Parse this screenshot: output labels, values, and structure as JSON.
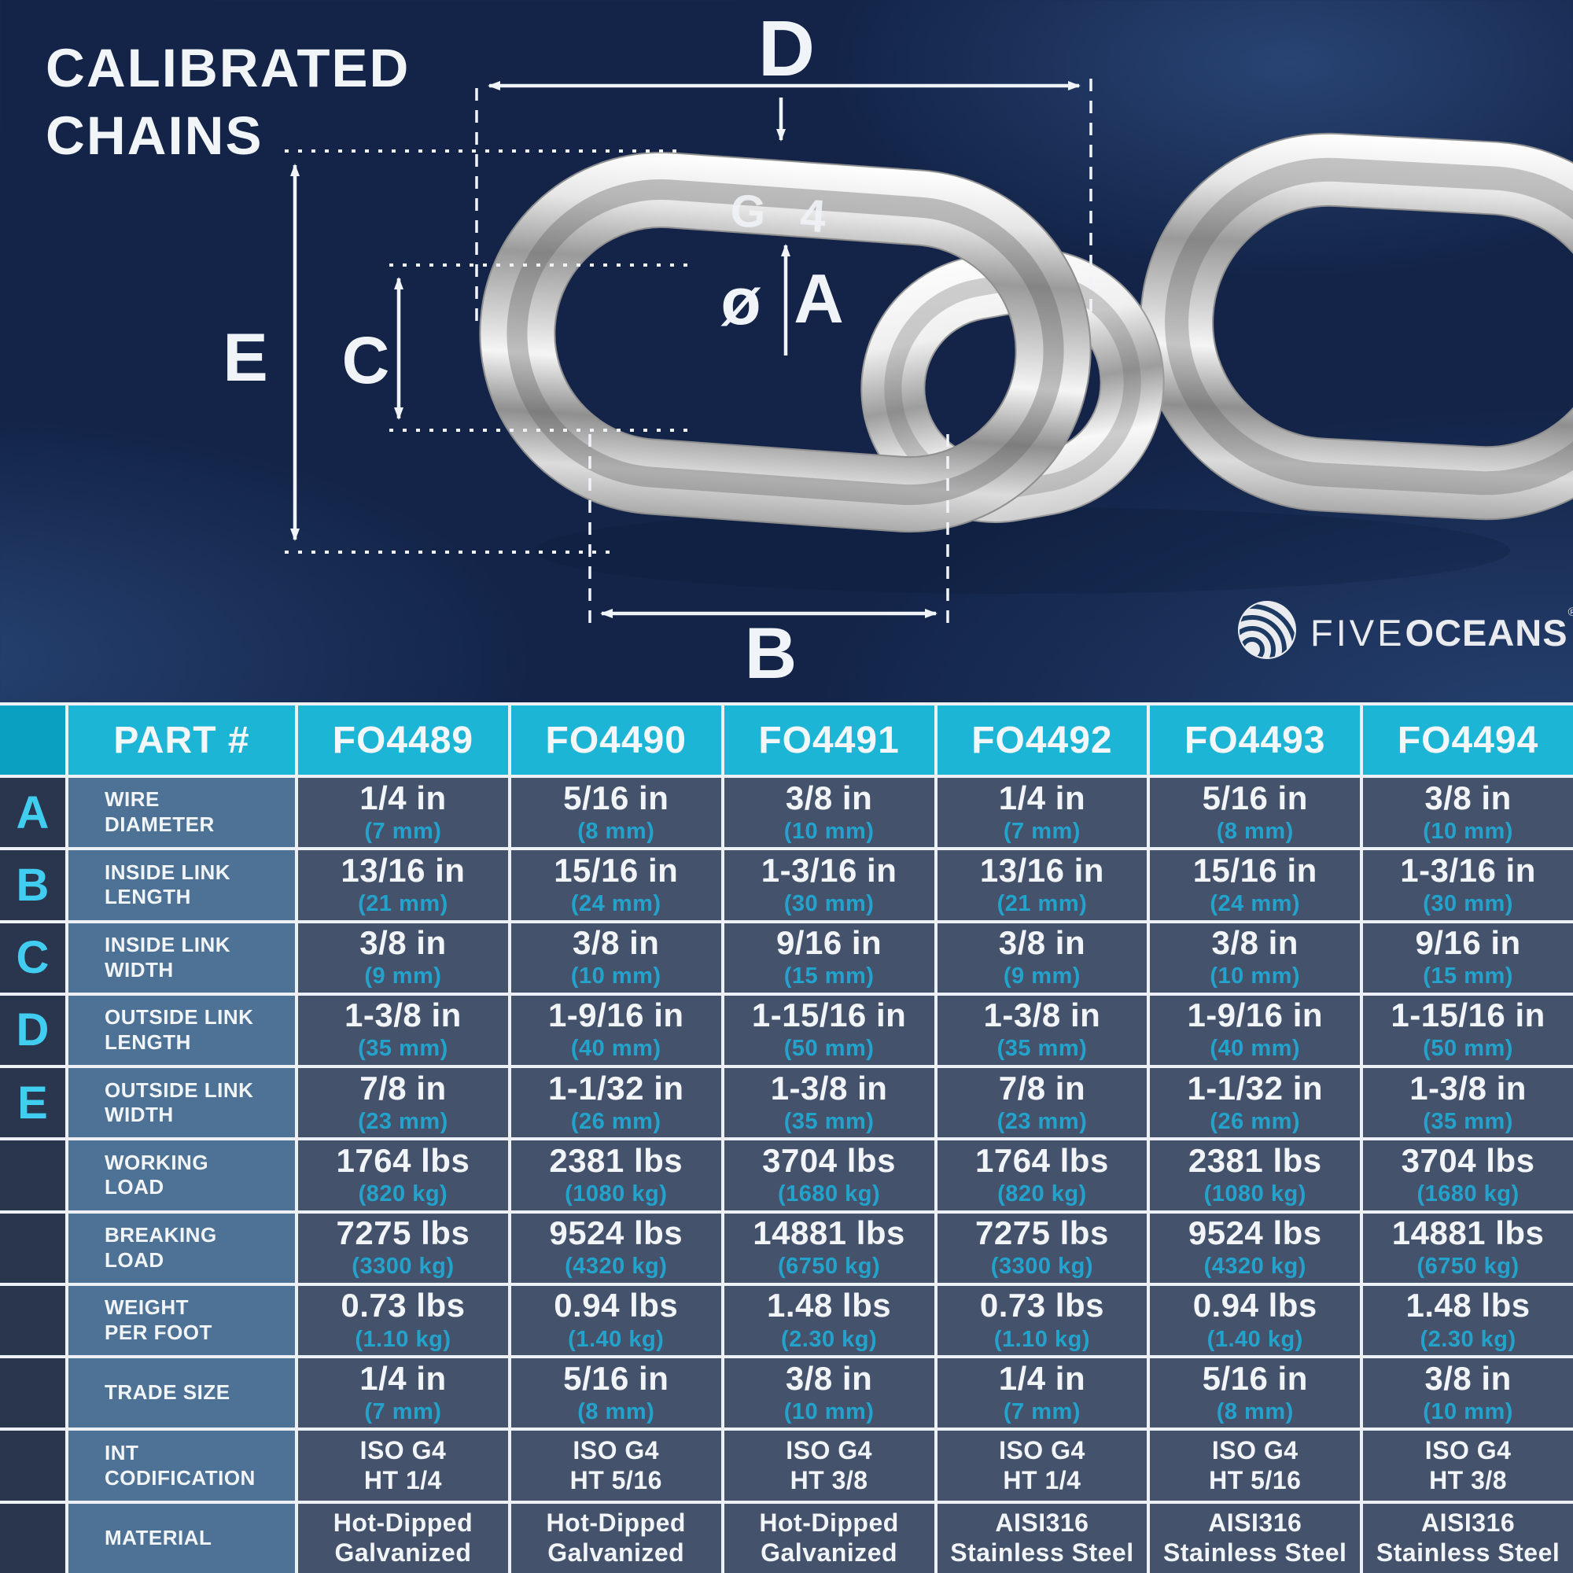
{
  "title": {
    "line1": "CALIBRATED",
    "line2": "CHAINS"
  },
  "brand": {
    "name_light": "FIVE",
    "name_bold": "OCEANS",
    "registered": "®"
  },
  "diagram": {
    "stamp": "G 4",
    "labels": {
      "a": "A",
      "b": "B",
      "c": "C",
      "d": "D",
      "e": "E",
      "diameter": "ø"
    }
  },
  "colors": {
    "background_navy": "#132448",
    "header_teal": "#1cb5d6",
    "corner_teal": "#0aa0c2",
    "label_cell_blue": "#2e5478",
    "data_cell_navy": "#1b2e54",
    "accent_cyan": "#41cdf0",
    "sub_value_cyan": "#23a3cc",
    "gridline_white": "#edf1f5",
    "text_white": "#f2f5f8"
  },
  "table": {
    "part_header": "PART #",
    "columns": [
      "FO4489",
      "FO4490",
      "FO4491",
      "FO4492",
      "FO4493",
      "FO4494"
    ],
    "rows": [
      {
        "letter": "A",
        "label": [
          "WIRE",
          "DIAMETER"
        ],
        "type": "measure",
        "values": [
          [
            "1/4 in",
            "(7 mm)"
          ],
          [
            "5/16 in",
            "(8 mm)"
          ],
          [
            "3/8 in",
            "(10 mm)"
          ],
          [
            "1/4 in",
            "(7 mm)"
          ],
          [
            "5/16 in",
            "(8 mm)"
          ],
          [
            "3/8 in",
            "(10 mm)"
          ]
        ]
      },
      {
        "letter": "B",
        "label": [
          "INSIDE LINK",
          "LENGTH"
        ],
        "type": "measure",
        "values": [
          [
            "13/16 in",
            "(21 mm)"
          ],
          [
            "15/16 in",
            "(24 mm)"
          ],
          [
            "1-3/16 in",
            "(30 mm)"
          ],
          [
            "13/16 in",
            "(21 mm)"
          ],
          [
            "15/16 in",
            "(24 mm)"
          ],
          [
            "1-3/16 in",
            "(30 mm)"
          ]
        ]
      },
      {
        "letter": "C",
        "label": [
          "INSIDE LINK",
          "WIDTH"
        ],
        "type": "measure",
        "values": [
          [
            "3/8 in",
            "(9 mm)"
          ],
          [
            "3/8 in",
            "(10 mm)"
          ],
          [
            "9/16 in",
            "(15 mm)"
          ],
          [
            "3/8 in",
            "(9 mm)"
          ],
          [
            "3/8 in",
            "(10 mm)"
          ],
          [
            "9/16 in",
            "(15 mm)"
          ]
        ]
      },
      {
        "letter": "D",
        "label": [
          "OUTSIDE LINK",
          "LENGTH"
        ],
        "type": "measure",
        "values": [
          [
            "1-3/8 in",
            "(35 mm)"
          ],
          [
            "1-9/16 in",
            "(40 mm)"
          ],
          [
            "1-15/16 in",
            "(50 mm)"
          ],
          [
            "1-3/8 in",
            "(35 mm)"
          ],
          [
            "1-9/16 in",
            "(40 mm)"
          ],
          [
            "1-15/16 in",
            "(50 mm)"
          ]
        ]
      },
      {
        "letter": "E",
        "label": [
          "OUTSIDE LINK",
          "WIDTH"
        ],
        "type": "measure",
        "values": [
          [
            "7/8 in",
            "(23 mm)"
          ],
          [
            "1-1/32 in",
            "(26 mm)"
          ],
          [
            "1-3/8 in",
            "(35 mm)"
          ],
          [
            "7/8 in",
            "(23 mm)"
          ],
          [
            "1-1/32 in",
            "(26 mm)"
          ],
          [
            "1-3/8 in",
            "(35 mm)"
          ]
        ]
      },
      {
        "letter": "",
        "label": [
          "WORKING",
          "LOAD"
        ],
        "type": "measure",
        "values": [
          [
            "1764 lbs",
            "(820 kg)"
          ],
          [
            "2381 lbs",
            "(1080 kg)"
          ],
          [
            "3704 lbs",
            "(1680 kg)"
          ],
          [
            "1764 lbs",
            "(820 kg)"
          ],
          [
            "2381 lbs",
            "(1080 kg)"
          ],
          [
            "3704 lbs",
            "(1680 kg)"
          ]
        ]
      },
      {
        "letter": "",
        "label": [
          "BREAKING",
          "LOAD"
        ],
        "type": "measure",
        "values": [
          [
            "7275 lbs",
            "(3300 kg)"
          ],
          [
            "9524 lbs",
            "(4320 kg)"
          ],
          [
            "14881 lbs",
            "(6750 kg)"
          ],
          [
            "7275 lbs",
            "(3300 kg)"
          ],
          [
            "9524 lbs",
            "(4320 kg)"
          ],
          [
            "14881 lbs",
            "(6750 kg)"
          ]
        ]
      },
      {
        "letter": "",
        "label": [
          "WEIGHT",
          "PER FOOT"
        ],
        "type": "measure",
        "values": [
          [
            "0.73 lbs",
            "(1.10 kg)"
          ],
          [
            "0.94 lbs",
            "(1.40 kg)"
          ],
          [
            "1.48 lbs",
            "(2.30 kg)"
          ],
          [
            "0.73 lbs",
            "(1.10 kg)"
          ],
          [
            "0.94 lbs",
            "(1.40 kg)"
          ],
          [
            "1.48 lbs",
            "(2.30 kg)"
          ]
        ]
      },
      {
        "letter": "",
        "label": [
          "TRADE SIZE"
        ],
        "type": "measure",
        "values": [
          [
            "1/4 in",
            "(7 mm)"
          ],
          [
            "5/16 in",
            "(8 mm)"
          ],
          [
            "3/8 in",
            "(10 mm)"
          ],
          [
            "1/4 in",
            "(7 mm)"
          ],
          [
            "5/16 in",
            "(8 mm)"
          ],
          [
            "3/8 in",
            "(10 mm)"
          ]
        ]
      },
      {
        "letter": "",
        "label": [
          "INT",
          "CODIFICATION"
        ],
        "type": "code",
        "values": [
          [
            "ISO G4",
            "HT 1/4"
          ],
          [
            "ISO G4",
            "HT 5/16"
          ],
          [
            "ISO G4",
            "HT 3/8"
          ],
          [
            "ISO G4",
            "HT 1/4"
          ],
          [
            "ISO G4",
            "HT 5/16"
          ],
          [
            "ISO G4",
            "HT 3/8"
          ]
        ]
      },
      {
        "letter": "",
        "label": [
          "MATERIAL"
        ],
        "type": "code",
        "values": [
          [
            "Hot-Dipped",
            "Galvanized"
          ],
          [
            "Hot-Dipped",
            "Galvanized"
          ],
          [
            "Hot-Dipped",
            "Galvanized"
          ],
          [
            "AISI316",
            "Stainless Steel"
          ],
          [
            "AISI316",
            "Stainless Steel"
          ],
          [
            "AISI316",
            "Stainless Steel"
          ]
        ]
      }
    ]
  }
}
